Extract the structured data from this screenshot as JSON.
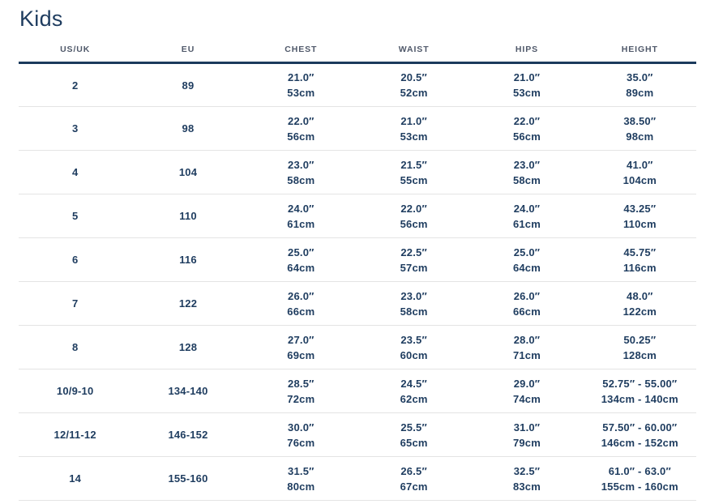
{
  "page": {
    "title": "Kids"
  },
  "colors": {
    "title_navy": "#1e3c5f",
    "data_navy": "#1e3c5f",
    "header_text_gray": "#50596a",
    "header_rule_navy": "#1b3a5c",
    "row_separator_gray": "#e4e4e4",
    "background": "#ffffff"
  },
  "table": {
    "columns": [
      "US/UK",
      "EU",
      "CHEST",
      "WAIST",
      "HIPS",
      "HEIGHT"
    ],
    "rows": [
      {
        "us_uk": "2",
        "eu": "89",
        "chest_in": "21.0″",
        "chest_cm": "53cm",
        "waist_in": "20.5″",
        "waist_cm": "52cm",
        "hips_in": "21.0″",
        "hips_cm": "53cm",
        "height_in": "35.0″",
        "height_cm": "89cm"
      },
      {
        "us_uk": "3",
        "eu": "98",
        "chest_in": "22.0″",
        "chest_cm": "56cm",
        "waist_in": "21.0″",
        "waist_cm": "53cm",
        "hips_in": "22.0″",
        "hips_cm": "56cm",
        "height_in": "38.50″",
        "height_cm": "98cm"
      },
      {
        "us_uk": "4",
        "eu": "104",
        "chest_in": "23.0″",
        "chest_cm": "58cm",
        "waist_in": "21.5″",
        "waist_cm": "55cm",
        "hips_in": "23.0″",
        "hips_cm": "58cm",
        "height_in": "41.0″",
        "height_cm": "104cm"
      },
      {
        "us_uk": "5",
        "eu": "110",
        "chest_in": "24.0″",
        "chest_cm": "61cm",
        "waist_in": "22.0″",
        "waist_cm": "56cm",
        "hips_in": "24.0″",
        "hips_cm": "61cm",
        "height_in": "43.25″",
        "height_cm": "110cm"
      },
      {
        "us_uk": "6",
        "eu": "116",
        "chest_in": "25.0″",
        "chest_cm": "64cm",
        "waist_in": "22.5″",
        "waist_cm": "57cm",
        "hips_in": "25.0″",
        "hips_cm": "64cm",
        "height_in": "45.75″",
        "height_cm": "116cm"
      },
      {
        "us_uk": "7",
        "eu": "122",
        "chest_in": "26.0″",
        "chest_cm": "66cm",
        "waist_in": "23.0″",
        "waist_cm": "58cm",
        "hips_in": "26.0″",
        "hips_cm": "66cm",
        "height_in": "48.0″",
        "height_cm": "122cm"
      },
      {
        "us_uk": "8",
        "eu": "128",
        "chest_in": "27.0″",
        "chest_cm": "69cm",
        "waist_in": "23.5″",
        "waist_cm": "60cm",
        "hips_in": "28.0″",
        "hips_cm": "71cm",
        "height_in": "50.25″",
        "height_cm": "128cm"
      },
      {
        "us_uk": "10/9-10",
        "eu": "134-140",
        "chest_in": "28.5″",
        "chest_cm": "72cm",
        "waist_in": "24.5″",
        "waist_cm": "62cm",
        "hips_in": "29.0″",
        "hips_cm": "74cm",
        "height_in": "52.75″ - 55.00″",
        "height_cm": "134cm - 140cm"
      },
      {
        "us_uk": "12/11-12",
        "eu": "146-152",
        "chest_in": "30.0″",
        "chest_cm": "76cm",
        "waist_in": "25.5″",
        "waist_cm": "65cm",
        "hips_in": "31.0″",
        "hips_cm": "79cm",
        "height_in": "57.50″ - 60.00″",
        "height_cm": "146cm - 152cm"
      },
      {
        "us_uk": "14",
        "eu": "155-160",
        "chest_in": "31.5″",
        "chest_cm": "80cm",
        "waist_in": "26.5″",
        "waist_cm": "67cm",
        "hips_in": "32.5″",
        "hips_cm": "83cm",
        "height_in": "61.0″ - 63.0″",
        "height_cm": "155cm - 160cm"
      }
    ]
  }
}
